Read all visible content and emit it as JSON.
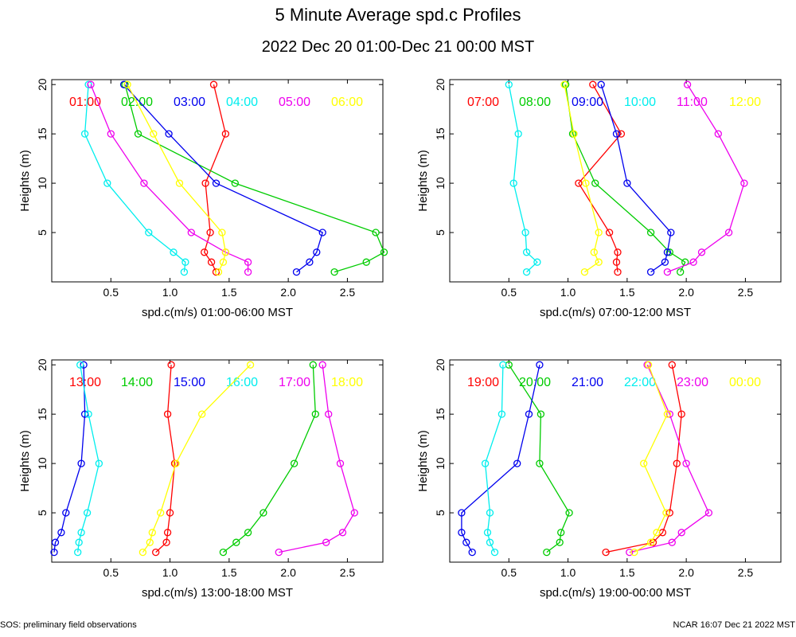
{
  "title": "5 Minute Average spd.c Profiles",
  "subtitle": "2022 Dec 20 01:00-Dec 21 00:00 MST",
  "footer_left": "SOS: preliminary field observations",
  "footer_right": "NCAR 16:07 Dec 21 2022 MST",
  "heights": [
    20,
    15,
    10,
    5,
    3,
    2,
    1
  ],
  "chart_data": [
    {
      "type": "line",
      "xlabel": "spd.c(m/s) 01:00-06:00 MST",
      "ylabel": "Heights (m)",
      "xlim": [
        0,
        2.8
      ],
      "ylim": [
        0,
        20.5
      ],
      "xticks": [
        0.5,
        1.0,
        1.5,
        2.0,
        2.5
      ],
      "xtick_labels": [
        "0.5",
        "1.0",
        "1.5",
        "2.0",
        "2.5"
      ],
      "yticks": [
        5,
        10,
        15,
        20
      ],
      "series": [
        {
          "name": "01:00",
          "color": "#ff0000",
          "values": [
            1.37,
            1.47,
            1.3,
            1.34,
            1.29,
            1.35,
            1.39
          ]
        },
        {
          "name": "02:00",
          "color": "#00cc00",
          "values": [
            0.62,
            0.73,
            1.55,
            2.74,
            2.81,
            2.66,
            2.39
          ]
        },
        {
          "name": "03:00",
          "color": "#0000ee",
          "values": [
            0.61,
            0.99,
            1.39,
            2.29,
            2.24,
            2.18,
            2.07
          ]
        },
        {
          "name": "04:00",
          "color": "#00eeee",
          "values": [
            0.31,
            0.28,
            0.47,
            0.82,
            1.03,
            1.13,
            1.12
          ]
        },
        {
          "name": "05:00",
          "color": "#ee00ee",
          "values": [
            0.33,
            0.5,
            0.78,
            1.18,
            1.47,
            1.66,
            1.66
          ]
        },
        {
          "name": "06:00",
          "color": "#ffff00",
          "values": [
            0.64,
            0.86,
            1.08,
            1.44,
            1.47,
            1.45,
            1.41
          ]
        }
      ]
    },
    {
      "type": "line",
      "xlabel": "spd.c(m/s) 07:00-12:00 MST",
      "ylabel": "Heights (m)",
      "xlim": [
        0,
        2.8
      ],
      "ylim": [
        0,
        20.5
      ],
      "xticks": [
        0.5,
        1.0,
        1.5,
        2.0,
        2.5
      ],
      "xtick_labels": [
        "0.5",
        "1.0",
        "1.5",
        "2.0",
        "2.5"
      ],
      "yticks": [
        5,
        10,
        15,
        20
      ],
      "series": [
        {
          "name": "07:00",
          "color": "#ff0000",
          "values": [
            1.21,
            1.45,
            1.09,
            1.35,
            1.42,
            1.41,
            1.42
          ]
        },
        {
          "name": "08:00",
          "color": "#00cc00",
          "values": [
            0.98,
            1.04,
            1.23,
            1.7,
            1.86,
            1.99,
            1.95
          ]
        },
        {
          "name": "09:00",
          "color": "#0000ee",
          "values": [
            1.28,
            1.41,
            1.5,
            1.87,
            1.84,
            1.82,
            1.7
          ]
        },
        {
          "name": "10:00",
          "color": "#00eeee",
          "values": [
            0.5,
            0.58,
            0.54,
            0.64,
            0.65,
            0.74,
            0.65
          ]
        },
        {
          "name": "11:00",
          "color": "#ee00ee",
          "values": [
            2.01,
            2.27,
            2.49,
            2.36,
            2.13,
            2.06,
            1.84
          ]
        },
        {
          "name": "12:00",
          "color": "#ffff00",
          "values": [
            0.97,
            1.05,
            1.15,
            1.26,
            1.22,
            1.26,
            1.14
          ]
        }
      ]
    },
    {
      "type": "line",
      "xlabel": "spd.c(m/s) 13:00-18:00 MST",
      "ylabel": "Heights (m)",
      "xlim": [
        0,
        2.8
      ],
      "ylim": [
        0,
        20.5
      ],
      "xticks": [
        0.5,
        1.0,
        1.5,
        2.0,
        2.5
      ],
      "xtick_labels": [
        "0.5",
        "1.0",
        "1.5",
        "2.0",
        "2.5"
      ],
      "yticks": [
        5,
        10,
        15,
        20
      ],
      "series": [
        {
          "name": "13:00",
          "color": "#ff0000",
          "values": [
            1.01,
            0.98,
            1.04,
            1.0,
            0.98,
            0.97,
            0.88
          ]
        },
        {
          "name": "14:00",
          "color": "#00cc00",
          "values": [
            2.21,
            2.23,
            2.05,
            1.79,
            1.66,
            1.56,
            1.45
          ]
        },
        {
          "name": "15:00",
          "color": "#0000ee",
          "values": [
            0.27,
            0.28,
            0.25,
            0.12,
            0.08,
            0.03,
            0.02
          ]
        },
        {
          "name": "16:00",
          "color": "#00eeee",
          "values": [
            0.24,
            0.31,
            0.4,
            0.3,
            0.25,
            0.23,
            0.22
          ]
        },
        {
          "name": "17:00",
          "color": "#ee00ee",
          "values": [
            2.29,
            2.34,
            2.44,
            2.56,
            2.46,
            2.32,
            1.92
          ]
        },
        {
          "name": "18:00",
          "color": "#ffff00",
          "values": [
            1.68,
            1.27,
            1.05,
            0.92,
            0.85,
            0.83,
            0.77
          ]
        }
      ]
    },
    {
      "type": "line",
      "xlabel": "spd.c(m/s) 19:00-00:00 MST",
      "ylabel": "Heights (m)",
      "xlim": [
        0,
        2.8
      ],
      "ylim": [
        0,
        20.5
      ],
      "xticks": [
        0.5,
        1.0,
        1.5,
        2.0,
        2.5
      ],
      "xtick_labels": [
        "0.5",
        "1.0",
        "1.5",
        "2.0",
        "2.5"
      ],
      "yticks": [
        5,
        10,
        15,
        20
      ],
      "series": [
        {
          "name": "19:00",
          "color": "#ff0000",
          "values": [
            1.88,
            1.96,
            1.92,
            1.86,
            1.8,
            1.72,
            1.32
          ]
        },
        {
          "name": "20:00",
          "color": "#00cc00",
          "values": [
            0.5,
            0.77,
            0.76,
            1.01,
            0.94,
            0.93,
            0.82
          ]
        },
        {
          "name": "21:00",
          "color": "#0000ee",
          "values": [
            0.76,
            0.67,
            0.57,
            0.1,
            0.1,
            0.14,
            0.19
          ]
        },
        {
          "name": "22:00",
          "color": "#00eeee",
          "values": [
            0.45,
            0.44,
            0.3,
            0.34,
            0.32,
            0.34,
            0.38
          ]
        },
        {
          "name": "23:00",
          "color": "#ee00ee",
          "values": [
            1.67,
            1.86,
            2.0,
            2.19,
            1.96,
            1.88,
            1.52
          ]
        },
        {
          "name": "00:00",
          "color": "#ffff00",
          "values": [
            1.68,
            1.84,
            1.64,
            1.83,
            1.75,
            1.7,
            1.56
          ]
        }
      ]
    }
  ]
}
